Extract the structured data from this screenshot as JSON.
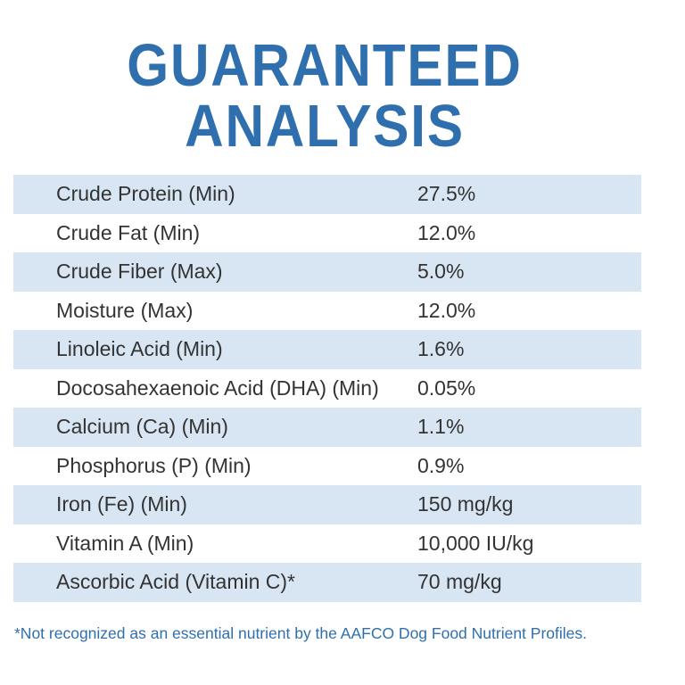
{
  "title": {
    "line1": "GUARANTEED",
    "line2": "ANALYSIS"
  },
  "colors": {
    "accent": "#2f6fae",
    "stripe": "#d8e6f3",
    "white": "#ffffff",
    "text": "#333333"
  },
  "rows": [
    {
      "label": "Crude Protein (Min)",
      "value": "27.5%"
    },
    {
      "label": "Crude Fat (Min)",
      "value": "12.0%"
    },
    {
      "label": "Crude Fiber (Max)",
      "value": "5.0%"
    },
    {
      "label": "Moisture (Max)",
      "value": "12.0%"
    },
    {
      "label": "Linoleic Acid (Min)",
      "value": "1.6%"
    },
    {
      "label": "Docosahexaenoic Acid (DHA) (Min)",
      "value": "0.05%"
    },
    {
      "label": "Calcium (Ca) (Min)",
      "value": "1.1%"
    },
    {
      "label": "Phosphorus (P) (Min)",
      "value": "0.9%"
    },
    {
      "label": "Iron (Fe) (Min)",
      "value": "150 mg/kg"
    },
    {
      "label": "Vitamin A (Min)",
      "value": "10,000 IU/kg"
    },
    {
      "label": "Ascorbic Acid (Vitamin C)*",
      "value": "70 mg/kg"
    }
  ],
  "footnote": "*Not recognized as an essential nutrient by the AAFCO Dog Food Nutrient Profiles."
}
